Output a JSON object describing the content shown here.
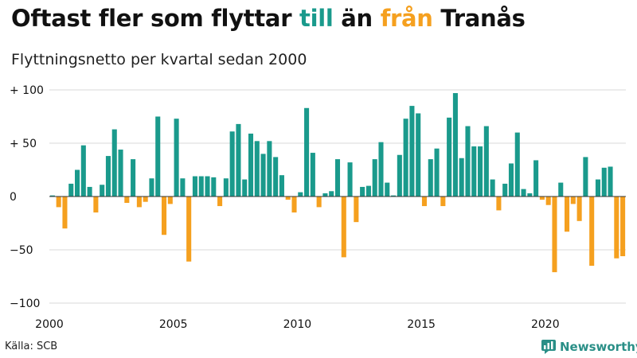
{
  "title": {
    "part1": "Oftast fler som flyttar ",
    "word_till": "till",
    "part2": " än ",
    "word_fran": "från",
    "part3": " Tranås"
  },
  "subtitle": "Flyttningsnetto per kvartal sedan 2000",
  "source": "Källa: SCB",
  "brand": {
    "name": "Newsworthy",
    "icon": "newsworthy-chart-logo-icon"
  },
  "colors": {
    "positive": "#1a9a8c",
    "negative": "#f5a01f",
    "brand": "#2a8f87"
  },
  "chart_data": {
    "type": "bar",
    "title": "Flyttningsnetto per kvartal sedan 2000",
    "x_ticks": [
      "2000",
      "2005",
      "2010",
      "2015",
      "2020"
    ],
    "y_ticks": [
      {
        "value": 100,
        "label": "+ 100"
      },
      {
        "value": 50,
        "label": "+  50"
      },
      {
        "value": 0,
        "label": "0"
      },
      {
        "value": -50,
        "label": "−50"
      },
      {
        "value": -100,
        "label": "−100"
      }
    ],
    "ylim": [
      -100,
      100
    ],
    "xlim": [
      2000,
      2023.25
    ],
    "grid": true,
    "values": [
      1,
      -10,
      -30,
      12,
      25,
      48,
      9,
      -15,
      11,
      38,
      63,
      44,
      -6,
      35,
      -10,
      -5,
      17,
      75,
      -36,
      -7,
      73,
      17,
      -61,
      19,
      19,
      19,
      18,
      -9,
      17,
      61,
      68,
      16,
      59,
      52,
      40,
      52,
      37,
      20,
      -3,
      -15,
      4,
      83,
      41,
      -10,
      3,
      5,
      35,
      -57,
      32,
      -24,
      9,
      10,
      35,
      51,
      13,
      1,
      39,
      73,
      85,
      78,
      -9,
      35,
      45,
      -9,
      74,
      97,
      36,
      66,
      47,
      47,
      66,
      16,
      -13,
      12,
      31,
      60,
      7,
      3,
      34,
      -3,
      -8,
      -71,
      13,
      -33,
      -7,
      -23,
      37,
      -65,
      16,
      27,
      28,
      -58,
      -56
    ]
  }
}
